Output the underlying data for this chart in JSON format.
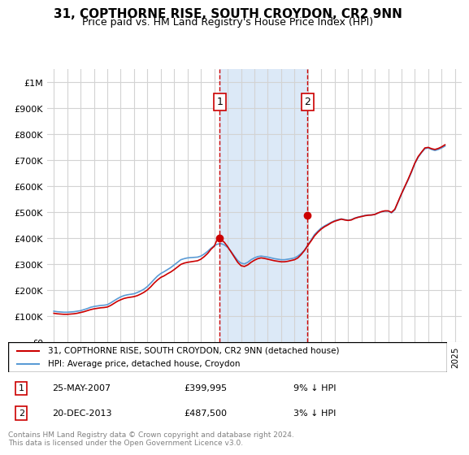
{
  "title": "31, COPTHORNE RISE, SOUTH CROYDON, CR2 9NN",
  "subtitle": "Price paid vs. HM Land Registry's House Price Index (HPI)",
  "ylabel": "",
  "ylim": [
    0,
    1050000
  ],
  "yticks": [
    0,
    100000,
    200000,
    300000,
    400000,
    500000,
    600000,
    700000,
    800000,
    900000,
    1000000
  ],
  "ytick_labels": [
    "£0",
    "£100K",
    "£200K",
    "£300K",
    "£400K",
    "£500K",
    "£600K",
    "£700K",
    "£800K",
    "£900K",
    "£1M"
  ],
  "xlim_start": 1994.5,
  "xlim_end": 2025.5,
  "purchase1_x": 2007.4,
  "purchase1_y": 399995,
  "purchase1_label": "1",
  "purchase2_x": 2013.97,
  "purchase2_y": 487500,
  "purchase2_label": "2",
  "shade_color": "#dce9f7",
  "vline_color": "#cc0000",
  "legend_line1": "31, COPTHORNE RISE, SOUTH CROYDON, CR2 9NN (detached house)",
  "legend_line2": "HPI: Average price, detached house, Croydon",
  "annotation1_date": "25-MAY-2007",
  "annotation1_price": "£399,995",
  "annotation1_hpi": "9% ↓ HPI",
  "annotation2_date": "20-DEC-2013",
  "annotation2_price": "£487,500",
  "annotation2_hpi": "3% ↓ HPI",
  "footer": "Contains HM Land Registry data © Crown copyright and database right 2024.\nThis data is licensed under the Open Government Licence v3.0.",
  "hpi_data": {
    "years": [
      1995,
      1995.25,
      1995.5,
      1995.75,
      1996,
      1996.25,
      1996.5,
      1996.75,
      1997,
      1997.25,
      1997.5,
      1997.75,
      1998,
      1998.25,
      1998.5,
      1998.75,
      1999,
      1999.25,
      1999.5,
      1999.75,
      2000,
      2000.25,
      2000.5,
      2000.75,
      2001,
      2001.25,
      2001.5,
      2001.75,
      2002,
      2002.25,
      2002.5,
      2002.75,
      2003,
      2003.25,
      2003.5,
      2003.75,
      2004,
      2004.25,
      2004.5,
      2004.75,
      2005,
      2005.25,
      2005.5,
      2005.75,
      2006,
      2006.25,
      2006.5,
      2006.75,
      2007,
      2007.25,
      2007.5,
      2007.75,
      2008,
      2008.25,
      2008.5,
      2008.75,
      2009,
      2009.25,
      2009.5,
      2009.75,
      2010,
      2010.25,
      2010.5,
      2010.75,
      2011,
      2011.25,
      2011.5,
      2011.75,
      2012,
      2012.25,
      2012.5,
      2012.75,
      2013,
      2013.25,
      2013.5,
      2013.75,
      2014,
      2014.25,
      2014.5,
      2014.75,
      2015,
      2015.25,
      2015.5,
      2015.75,
      2016,
      2016.25,
      2016.5,
      2016.75,
      2017,
      2017.25,
      2017.5,
      2017.75,
      2018,
      2018.25,
      2018.5,
      2018.75,
      2019,
      2019.25,
      2019.5,
      2019.75,
      2020,
      2020.25,
      2020.5,
      2020.75,
      2021,
      2021.25,
      2021.5,
      2021.75,
      2022,
      2022.25,
      2022.5,
      2022.75,
      2023,
      2023.25,
      2023.5,
      2023.75,
      2024,
      2024.25
    ],
    "values": [
      120000,
      118000,
      117000,
      116000,
      116000,
      117000,
      118000,
      120000,
      122000,
      126000,
      130000,
      135000,
      138000,
      140000,
      142000,
      143000,
      145000,
      152000,
      160000,
      168000,
      175000,
      180000,
      183000,
      185000,
      187000,
      192000,
      198000,
      205000,
      215000,
      228000,
      242000,
      255000,
      265000,
      272000,
      280000,
      288000,
      298000,
      308000,
      318000,
      322000,
      325000,
      326000,
      327000,
      328000,
      332000,
      340000,
      350000,
      362000,
      372000,
      378000,
      380000,
      375000,
      365000,
      350000,
      332000,
      315000,
      305000,
      302000,
      308000,
      318000,
      325000,
      330000,
      332000,
      330000,
      328000,
      325000,
      322000,
      320000,
      318000,
      318000,
      320000,
      322000,
      325000,
      332000,
      342000,
      355000,
      375000,
      395000,
      415000,
      428000,
      440000,
      448000,
      455000,
      462000,
      468000,
      472000,
      475000,
      472000,
      470000,
      472000,
      478000,
      482000,
      485000,
      488000,
      490000,
      490000,
      492000,
      498000,
      502000,
      505000,
      505000,
      498000,
      510000,
      540000,
      570000,
      598000,
      625000,
      655000,
      688000,
      712000,
      730000,
      745000,
      748000,
      742000,
      738000,
      742000,
      748000,
      755000
    ]
  },
  "red_data": {
    "years": [
      1995,
      1995.25,
      1995.5,
      1995.75,
      1996,
      1996.25,
      1996.5,
      1996.75,
      1997,
      1997.25,
      1997.5,
      1997.75,
      1998,
      1998.25,
      1998.5,
      1998.75,
      1999,
      1999.25,
      1999.5,
      1999.75,
      2000,
      2000.25,
      2000.5,
      2000.75,
      2001,
      2001.25,
      2001.5,
      2001.75,
      2002,
      2002.25,
      2002.5,
      2002.75,
      2003,
      2003.25,
      2003.5,
      2003.75,
      2004,
      2004.25,
      2004.5,
      2004.75,
      2005,
      2005.25,
      2005.5,
      2005.75,
      2006,
      2006.25,
      2006.5,
      2006.75,
      2007,
      2007.25,
      2007.5,
      2007.75,
      2008,
      2008.25,
      2008.5,
      2008.75,
      2009,
      2009.25,
      2009.5,
      2009.75,
      2010,
      2010.25,
      2010.5,
      2010.75,
      2011,
      2011.25,
      2011.5,
      2011.75,
      2012,
      2012.25,
      2012.5,
      2012.75,
      2013,
      2013.25,
      2013.5,
      2013.75,
      2014,
      2014.25,
      2014.5,
      2014.75,
      2015,
      2015.25,
      2015.5,
      2015.75,
      2016,
      2016.25,
      2016.5,
      2016.75,
      2017,
      2017.25,
      2017.5,
      2017.75,
      2018,
      2018.25,
      2018.5,
      2018.75,
      2019,
      2019.25,
      2019.5,
      2019.75,
      2020,
      2020.25,
      2020.5,
      2020.75,
      2021,
      2021.25,
      2021.5,
      2021.75,
      2022,
      2022.25,
      2022.5,
      2022.75,
      2023,
      2023.25,
      2023.5,
      2023.75,
      2024,
      2024.25
    ],
    "values": [
      112000,
      110000,
      109000,
      108000,
      108000,
      109000,
      110000,
      112000,
      115000,
      118000,
      122000,
      126000,
      129000,
      131000,
      133000,
      134000,
      136000,
      142000,
      150000,
      158000,
      164000,
      169000,
      172000,
      174000,
      176000,
      180000,
      186000,
      193000,
      202000,
      214000,
      228000,
      240000,
      250000,
      256000,
      264000,
      271000,
      280000,
      290000,
      300000,
      305000,
      308000,
      310000,
      312000,
      314000,
      320000,
      330000,
      342000,
      358000,
      370000,
      399995,
      395000,
      385000,
      368000,
      348000,
      328000,
      308000,
      295000,
      292000,
      298000,
      308000,
      316000,
      322000,
      325000,
      323000,
      320000,
      317000,
      314000,
      312000,
      310000,
      310000,
      312000,
      315000,
      318000,
      325000,
      338000,
      354000,
      373000,
      391000,
      410000,
      424000,
      436000,
      445000,
      452000,
      460000,
      466000,
      470000,
      474000,
      471000,
      469000,
      471000,
      477000,
      481000,
      484000,
      487000,
      489000,
      490000,
      492000,
      498000,
      503000,
      506000,
      506000,
      500000,
      512000,
      542000,
      572000,
      600000,
      628000,
      658000,
      690000,
      715000,
      732000,
      748000,
      750000,
      745000,
      742000,
      746000,
      752000,
      760000
    ]
  }
}
